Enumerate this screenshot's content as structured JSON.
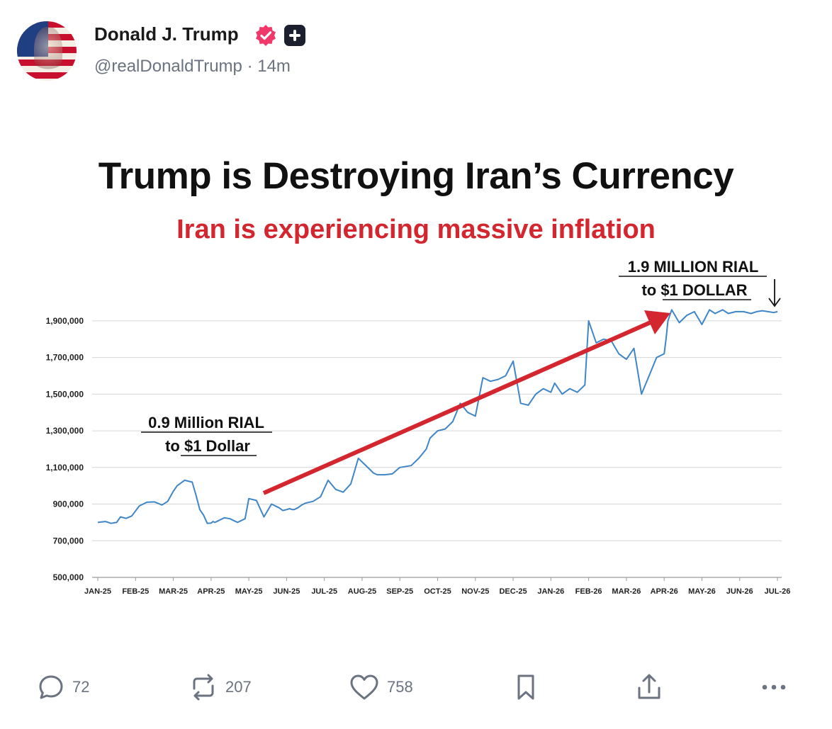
{
  "post": {
    "author_name": "Donald J. Trump",
    "handle": "@realDonaldTrump",
    "separator": "·",
    "timestamp": "14m",
    "verified_color": "#f0386b"
  },
  "image": {
    "title": "Trump is Destroying Iran’s Currency",
    "subtitle": "Iran is experiencing massive inflation",
    "annotation_left_line1": "0.9 Million RIAL",
    "annotation_left_line2": "to $1 Dollar",
    "annotation_right_line1": "1.9 MILLION RIAL",
    "annotation_right_line2": "to $1 DOLLAR"
  },
  "chart_data": {
    "type": "line",
    "title": "Trump is Destroying Iran’s Currency",
    "subtitle": "Iran is experiencing massive inflation",
    "xlabel": "",
    "ylabel": "",
    "ylim": [
      500000,
      2000000
    ],
    "yticks": [
      500000,
      700000,
      900000,
      1100000,
      1300000,
      1500000,
      1700000,
      1900000
    ],
    "ytick_labels": [
      "500,000",
      "700,000",
      "900,000",
      "1,100,000",
      "1,300,000",
      "1,500,000",
      "1,700,000",
      "1,900,000"
    ],
    "xticks": [
      "JAN-25",
      "FEB-25",
      "MAR-25",
      "APR-25",
      "MAY-25",
      "JUN-25",
      "JUL-25",
      "AUG-25",
      "SEP-25",
      "OCT-25",
      "NOV-25",
      "DEC-25",
      "JAN-26",
      "FEB-26",
      "MAR-26",
      "APR-26",
      "MAY-26",
      "JUN-26",
      "JUL-26"
    ],
    "grid": true,
    "line_color": "#3f86c8",
    "arrow_color": "#d3262e",
    "series": [
      {
        "x": [
          0.0,
          0.2,
          0.35,
          0.5,
          0.6,
          0.75,
          0.9,
          1.1,
          1.3,
          1.5,
          1.7,
          1.85,
          2.0,
          2.1,
          2.3,
          2.5,
          2.6,
          2.7,
          2.8,
          2.9,
          3.0,
          3.05,
          3.1,
          3.2,
          3.35,
          3.5,
          3.7,
          3.9,
          4.0,
          4.2,
          4.4,
          4.6,
          4.8,
          4.9,
          5.0,
          5.08,
          5.15,
          5.2,
          5.3,
          5.4,
          5.5,
          5.7,
          5.9,
          6.1,
          6.3,
          6.5,
          6.7,
          6.9,
          7.0,
          7.2,
          7.3,
          7.4,
          7.6,
          7.8,
          8.0,
          8.3,
          8.5,
          8.7,
          8.8,
          9.0,
          9.2,
          9.4,
          9.6,
          9.8,
          10.0,
          10.2,
          10.4,
          10.6,
          10.8,
          11.0,
          11.2,
          11.4,
          11.6,
          11.8,
          12.0,
          12.1,
          12.3,
          12.5,
          12.7,
          12.9,
          13.0,
          13.2,
          13.4,
          13.6,
          13.8,
          14.0,
          14.2,
          14.4,
          14.6,
          14.8,
          15.0,
          15.05,
          15.1,
          15.2,
          15.4,
          15.6,
          15.8,
          16.0,
          16.2,
          16.35,
          16.45,
          16.55,
          16.7,
          16.9,
          17.1,
          17.3,
          17.45,
          17.6,
          17.75,
          17.9,
          18.0
        ],
        "y": [
          800000,
          805000,
          795000,
          800000,
          830000,
          822000,
          835000,
          890000,
          910000,
          912000,
          895000,
          915000,
          970000,
          1000000,
          1030000,
          1020000,
          950000,
          870000,
          840000,
          795000,
          796000,
          805000,
          800000,
          810000,
          825000,
          820000,
          800000,
          820000,
          930000,
          920000,
          830000,
          900000,
          880000,
          865000,
          870000,
          875000,
          870000,
          870000,
          880000,
          895000,
          905000,
          915000,
          940000,
          1030000,
          980000,
          965000,
          1010000,
          1150000,
          1130000,
          1090000,
          1070000,
          1060000,
          1060000,
          1065000,
          1100000,
          1110000,
          1150000,
          1200000,
          1260000,
          1300000,
          1310000,
          1350000,
          1450000,
          1400000,
          1380000,
          1590000,
          1570000,
          1580000,
          1600000,
          1680000,
          1450000,
          1440000,
          1500000,
          1530000,
          1510000,
          1560000,
          1500000,
          1530000,
          1510000,
          1550000,
          1900000,
          1780000,
          1800000,
          1790000,
          1720000,
          1690000,
          1750000,
          1500000,
          1600000,
          1700000,
          1720000,
          1800000,
          1900000,
          1960000,
          1890000,
          1930000,
          1950000,
          1880000,
          1960000,
          1940000,
          1950000,
          1960000,
          1940000,
          1950000,
          1950000,
          1940000,
          1950000,
          1955000,
          1950000,
          1945000,
          1950000
        ]
      }
    ]
  },
  "actions": {
    "reply_count": "72",
    "repost_count": "207",
    "like_count": "758"
  }
}
